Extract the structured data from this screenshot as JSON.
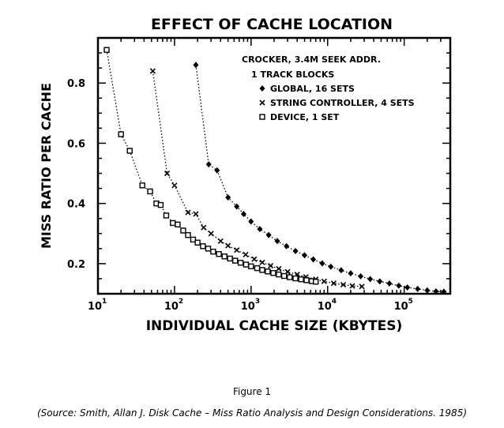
{
  "chart_data": {
    "type": "scatter",
    "title": "EFFECT OF CACHE LOCATION",
    "xlabel": "INDIVIDUAL CACHE SIZE (KBYTES)",
    "ylabel": "MISS RATIO PER CACHE",
    "x_scale": "log",
    "xlim": [
      10,
      400000
    ],
    "ylim": [
      0.1,
      0.95
    ],
    "x_ticks": [
      {
        "base": "10",
        "exp": "1",
        "value": 10
      },
      {
        "base": "10",
        "exp": "2",
        "value": 100
      },
      {
        "base": "10",
        "exp": "3",
        "value": 1000
      },
      {
        "base": "10",
        "exp": "4",
        "value": 10000
      },
      {
        "base": "10",
        "exp": "5",
        "value": 100000
      }
    ],
    "y_ticks": [
      {
        "label": "0.2",
        "value": 0.2
      },
      {
        "label": "0.4",
        "value": 0.4
      },
      {
        "label": "0.6",
        "value": 0.6
      },
      {
        "label": "0.8",
        "value": 0.8
      }
    ],
    "grid": false,
    "legend_position": "top-right",
    "legend_header": [
      "CROCKER, 3.4M SEEK ADDR.",
      "1 TRACK BLOCKS"
    ],
    "series": [
      {
        "name": "GLOBAL, 16 SETS",
        "marker": "diamond",
        "x": [
          190,
          280,
          360,
          500,
          650,
          800,
          1000,
          1300,
          1700,
          2200,
          2900,
          3800,
          5000,
          6500,
          8500,
          11000,
          15000,
          20000,
          27000,
          36000,
          48000,
          64000,
          85000,
          110000,
          150000,
          200000,
          260000,
          330000
        ],
        "y": [
          0.86,
          0.53,
          0.51,
          0.42,
          0.39,
          0.365,
          0.34,
          0.315,
          0.295,
          0.275,
          0.258,
          0.242,
          0.228,
          0.214,
          0.201,
          0.19,
          0.178,
          0.168,
          0.158,
          0.149,
          0.141,
          0.134,
          0.127,
          0.121,
          0.116,
          0.111,
          0.108,
          0.107
        ]
      },
      {
        "name": "STRING CONTROLLER, 4 SETS",
        "marker": "x",
        "x": [
          52,
          80,
          100,
          150,
          190,
          240,
          300,
          400,
          500,
          650,
          850,
          1100,
          1400,
          1800,
          2300,
          3000,
          4000,
          5200,
          7000,
          9000,
          12000,
          16000,
          21000,
          28000
        ],
        "y": [
          0.84,
          0.5,
          0.46,
          0.37,
          0.365,
          0.32,
          0.3,
          0.275,
          0.26,
          0.245,
          0.23,
          0.215,
          0.204,
          0.193,
          0.183,
          0.173,
          0.164,
          0.156,
          0.148,
          0.141,
          0.135,
          0.13,
          0.126,
          0.124
        ]
      },
      {
        "name": "DEVICE, 1 SET",
        "marker": "square",
        "x": [
          13,
          20,
          26,
          38,
          48,
          58,
          66,
          78,
          95,
          110,
          130,
          150,
          175,
          200,
          235,
          275,
          320,
          380,
          450,
          530,
          620,
          730,
          860,
          1000,
          1200,
          1400,
          1650,
          1950,
          2300,
          2700,
          3200,
          3800,
          4500,
          5300,
          6200,
          7000
        ],
        "y": [
          0.91,
          0.63,
          0.575,
          0.46,
          0.44,
          0.4,
          0.395,
          0.36,
          0.335,
          0.33,
          0.31,
          0.295,
          0.28,
          0.27,
          0.258,
          0.25,
          0.24,
          0.232,
          0.224,
          0.217,
          0.21,
          0.203,
          0.197,
          0.191,
          0.185,
          0.179,
          0.174,
          0.169,
          0.164,
          0.159,
          0.155,
          0.151,
          0.148,
          0.145,
          0.142,
          0.14
        ]
      }
    ]
  },
  "figure_caption": "Figure 1",
  "source_caption": "(Source: Smith, Allan J.  Disk Cache – Miss Ratio Analysis and Design Considerations. 1985)"
}
